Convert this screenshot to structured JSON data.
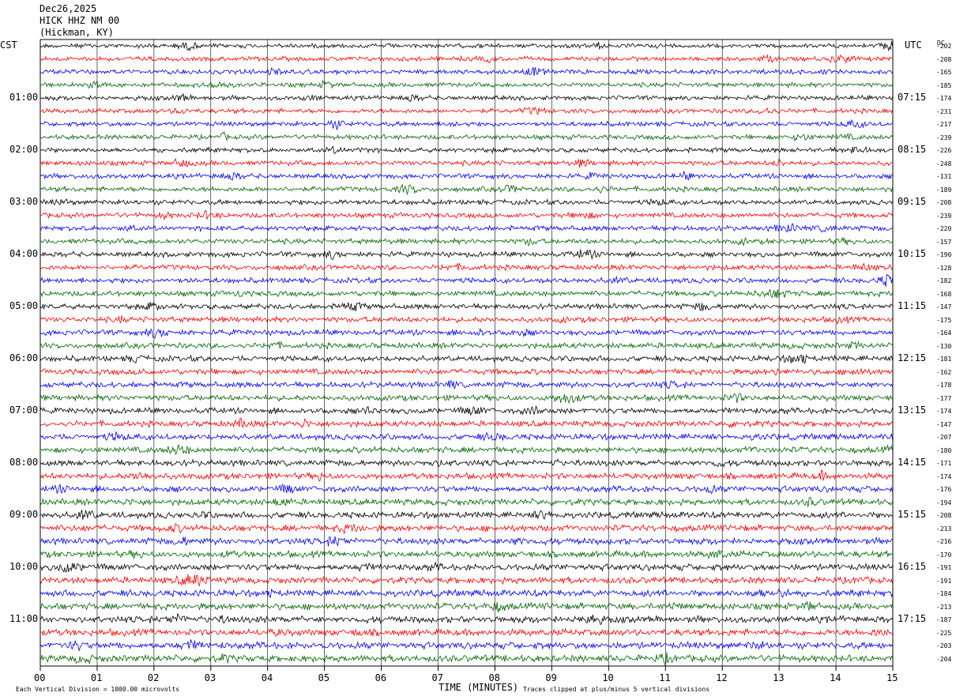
{
  "header": {
    "date": "Dec26,2025",
    "station": "HICK HHZ NM 00",
    "location": "(Hickman, KY)"
  },
  "left_zone": "CST",
  "right_zone": "UTC",
  "dc_label": "DC",
  "chart_data": {
    "type": "line",
    "title": "",
    "xlabel": "TIME (MINUTES)",
    "ylabel": "",
    "x_ticks": [
      "00",
      "01",
      "02",
      "03",
      "04",
      "05",
      "06",
      "07",
      "08",
      "09",
      "10",
      "11",
      "12",
      "13",
      "14",
      "15"
    ],
    "xlim": [
      0,
      15
    ],
    "grid": true,
    "trace_colors": [
      "#000000",
      "#ff0000",
      "#0000ff",
      "#006400"
    ],
    "left_hour_labels": [
      "01:00",
      "02:00",
      "03:00",
      "04:00",
      "05:00",
      "06:00",
      "07:00",
      "08:00",
      "09:00",
      "10:00",
      "11:00"
    ],
    "right_hour_labels": [
      "07:15",
      "08:15",
      "09:15",
      "10:15",
      "11:15",
      "12:15",
      "13:15",
      "14:15",
      "15:15",
      "16:15",
      "17:15"
    ],
    "dc_offsets": [
      "-202",
      "-208",
      "-165",
      "-185",
      "-174",
      "-231",
      "-217",
      "-239",
      "-226",
      "-248",
      "-131",
      "-189",
      "-208",
      "-239",
      "-220",
      "-157",
      "-190",
      "-128",
      "-182",
      "-168",
      "-147",
      "-175",
      "-164",
      "-130",
      "-181",
      "-162",
      "-178",
      "-177",
      "-174",
      "-147",
      "-207",
      "-180",
      "-171",
      "-174",
      "-176",
      "-194",
      "-208",
      "-213",
      "-216",
      "-170",
      "-191",
      "-191",
      "-184",
      "-213",
      "-187",
      "-225",
      "-203",
      "-204"
    ],
    "footer_left": "Each Vertical Division = 1000.00 microvolts",
    "footer_right": "Traces clipped at plus/minus 5 vertical divisions"
  }
}
